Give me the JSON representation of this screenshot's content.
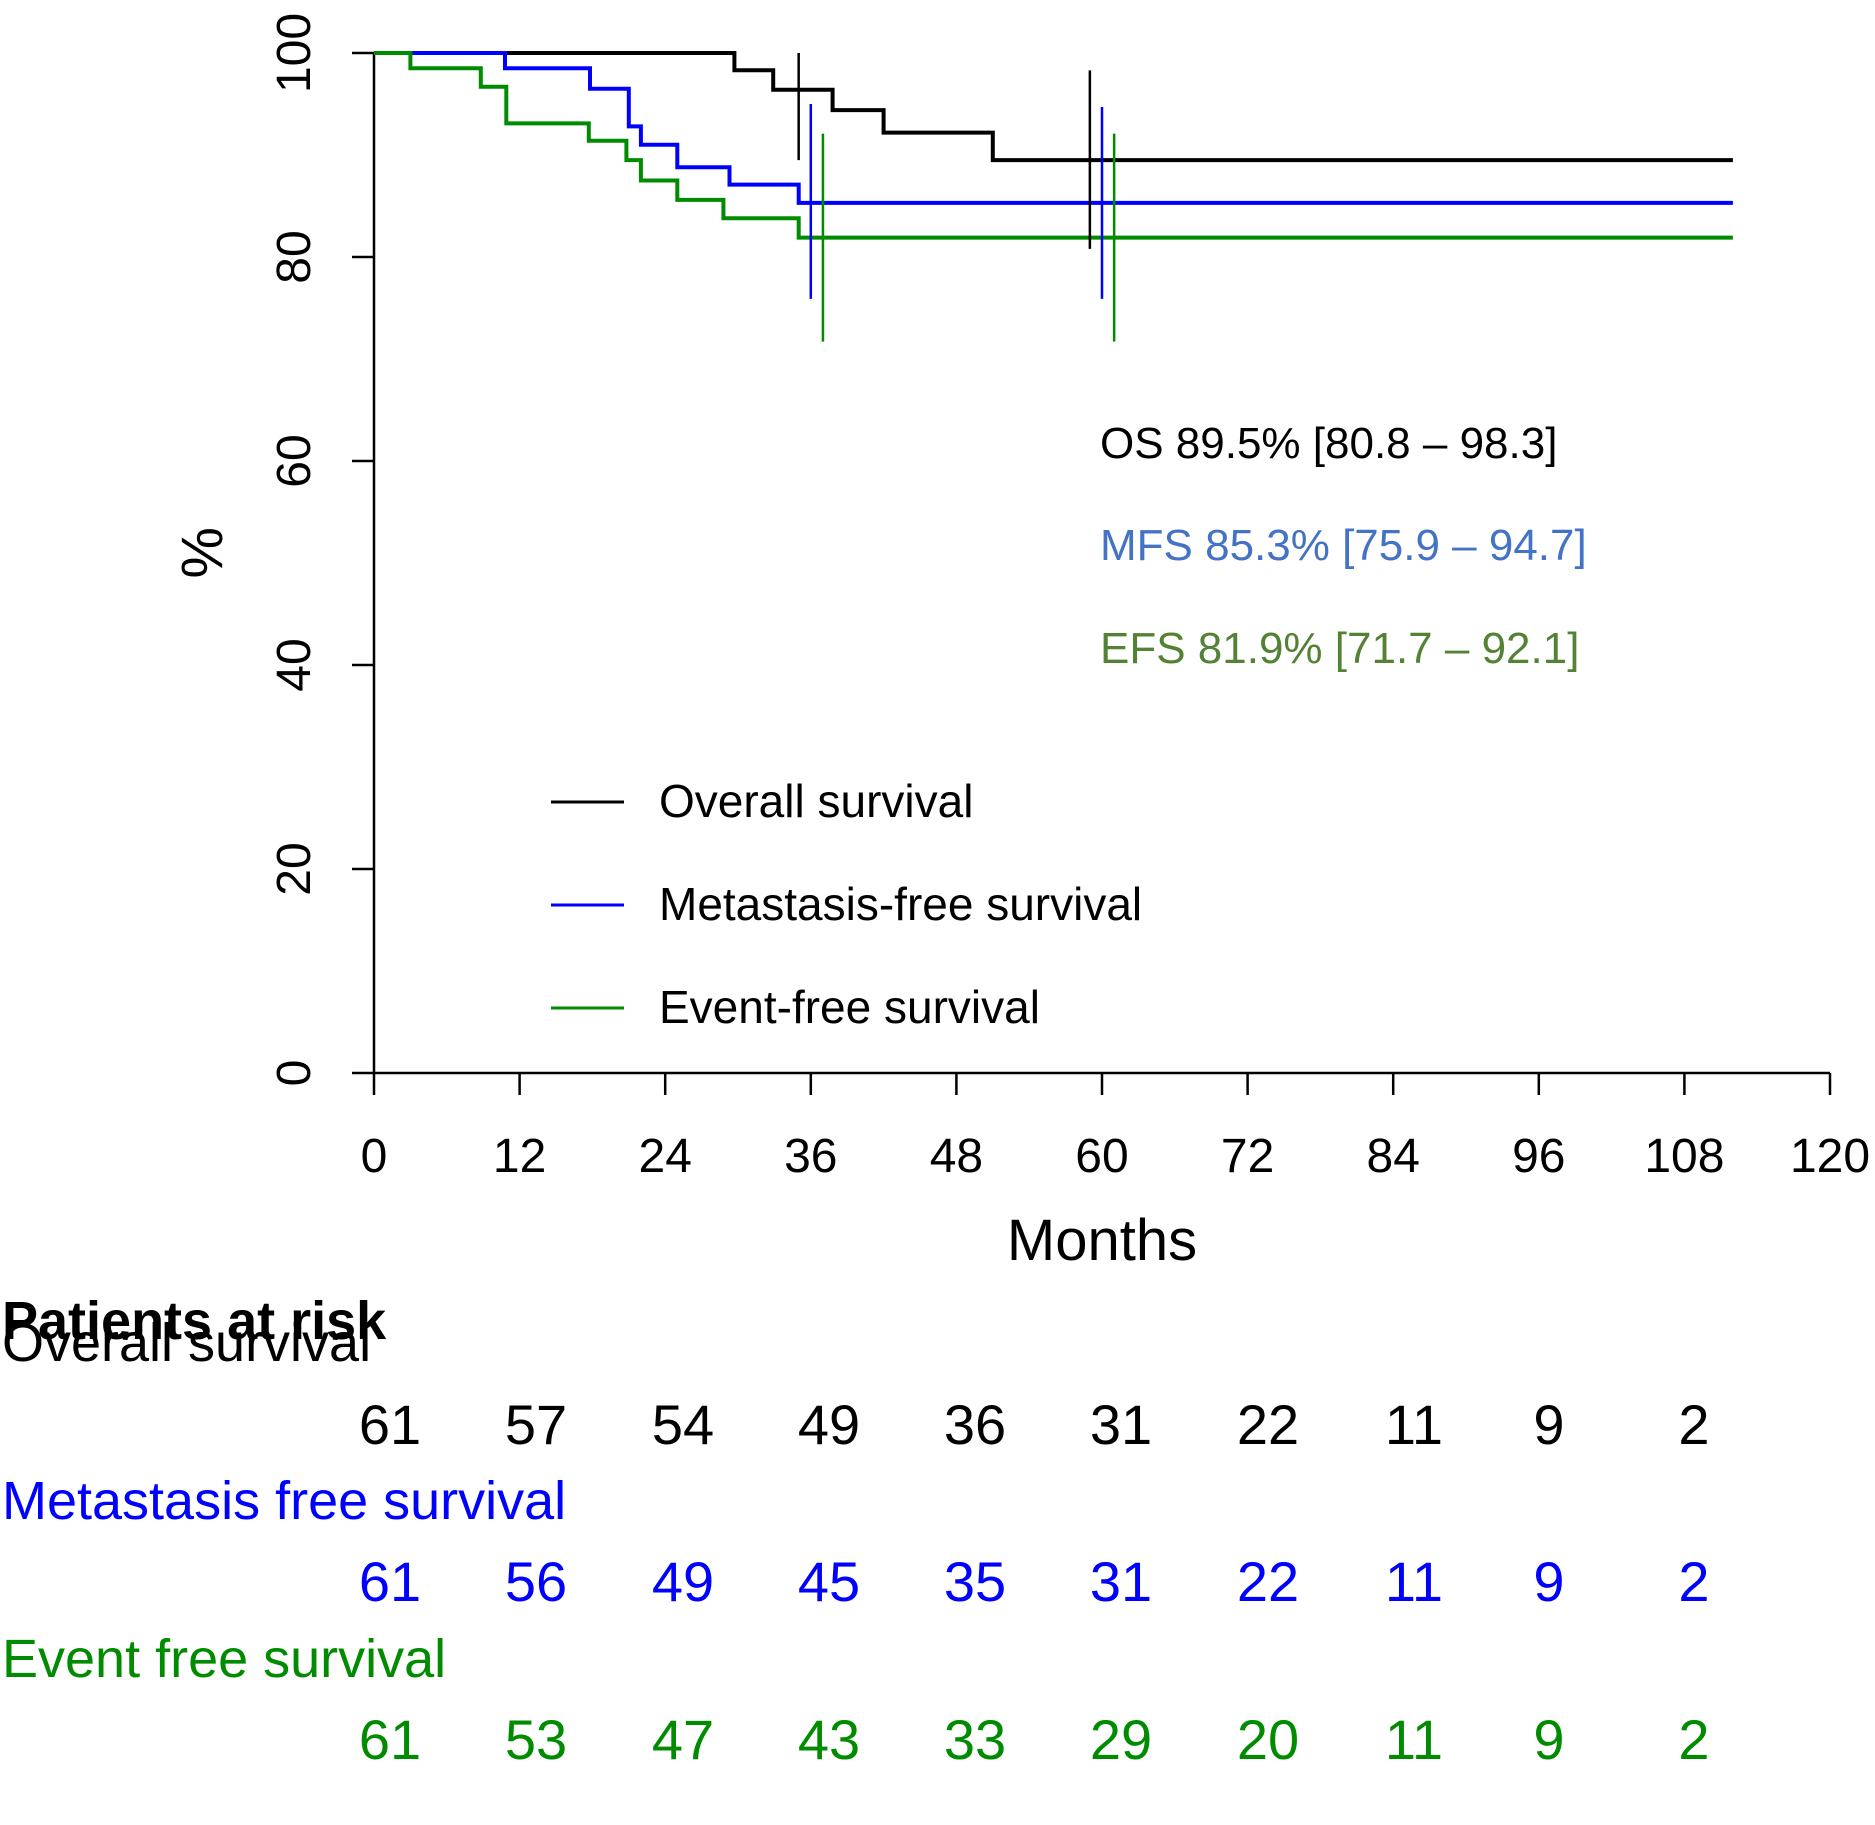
{
  "chart_data": {
    "type": "line",
    "subtype": "kaplan-meier",
    "title": "",
    "xlabel": "Months",
    "ylabel": "%",
    "xlim": [
      0,
      120
    ],
    "ylim": [
      0,
      100
    ],
    "xticks": [
      "0",
      "12",
      "24",
      "36",
      "48",
      "60",
      "72",
      "84",
      "96",
      "108",
      "120"
    ],
    "yticks": [
      "0",
      "20",
      "40",
      "60",
      "80",
      "100"
    ],
    "grid": false,
    "legend_position": "bottom-center",
    "series": [
      {
        "name": "Overall survival",
        "color": "#000000",
        "steps": [
          [
            0,
            100
          ],
          [
            29.7,
            100
          ],
          [
            29.7,
            98.3
          ],
          [
            32.9,
            98.3
          ],
          [
            32.9,
            96.4
          ],
          [
            37.8,
            96.4
          ],
          [
            37.8,
            94.4
          ],
          [
            42,
            94.4
          ],
          [
            42,
            92.2
          ],
          [
            51,
            92.2
          ],
          [
            51,
            89.5
          ],
          [
            112,
            89.5
          ]
        ],
        "ci_bars": [
          {
            "x": 35,
            "low": 89.5,
            "high": 100
          },
          {
            "x": 59,
            "low": 80.8,
            "high": 98.3
          }
        ]
      },
      {
        "name": "Metastasis-free survival",
        "color": "#0000ff",
        "steps": [
          [
            0,
            100
          ],
          [
            10.8,
            100
          ],
          [
            10.8,
            98.5
          ],
          [
            17.8,
            98.5
          ],
          [
            17.8,
            96.5
          ],
          [
            21,
            96.5
          ],
          [
            21,
            92.8
          ],
          [
            22,
            92.8
          ],
          [
            22,
            91
          ],
          [
            25,
            91
          ],
          [
            25,
            88.8
          ],
          [
            29.3,
            88.8
          ],
          [
            29.3,
            87.1
          ],
          [
            35,
            87.1
          ],
          [
            35,
            85.3
          ],
          [
            112,
            85.3
          ]
        ],
        "ci_bars": [
          {
            "x": 36,
            "low": 75.9,
            "high": 95
          },
          {
            "x": 60,
            "low": 75.9,
            "high": 94.7
          }
        ]
      },
      {
        "name": "Event-free survival",
        "color": "#008b00",
        "steps": [
          [
            0,
            100
          ],
          [
            3,
            100
          ],
          [
            3,
            98.5
          ],
          [
            8.8,
            98.5
          ],
          [
            8.8,
            96.7
          ],
          [
            10.9,
            96.7
          ],
          [
            10.9,
            93.1
          ],
          [
            17.7,
            93.1
          ],
          [
            17.7,
            91.4
          ],
          [
            20.8,
            91.4
          ],
          [
            20.8,
            89.5
          ],
          [
            22,
            89.5
          ],
          [
            22,
            87.5
          ],
          [
            25,
            87.5
          ],
          [
            25,
            85.6
          ],
          [
            28.8,
            85.6
          ],
          [
            28.8,
            83.8
          ],
          [
            35,
            83.8
          ],
          [
            35,
            81.9
          ],
          [
            112,
            81.9
          ]
        ],
        "ci_bars": [
          {
            "x": 37,
            "low": 71.7,
            "high": 92.1
          },
          {
            "x": 61,
            "low": 71.7,
            "high": 92.1
          }
        ]
      }
    ],
    "annotations": [
      {
        "text": "OS 89.5% [80.8 – 98.3]",
        "color": "#000000"
      },
      {
        "text": "MFS 85.3% [75.9 – 94.7]",
        "color": "#4472c4"
      },
      {
        "text": "EFS 81.9% [71.7 – 92.1]",
        "color": "#548235"
      }
    ],
    "risk_table": {
      "title": "Patients at risk",
      "rows": [
        {
          "label": "Overall survival",
          "color": "#000000",
          "values": [
            "61",
            "57",
            "54",
            "49",
            "36",
            "31",
            "22",
            "11",
            "9",
            "2"
          ]
        },
        {
          "label": "Metastasis free survival",
          "color": "#0000ff",
          "values": [
            "61",
            "56",
            "49",
            "45",
            "35",
            "31",
            "22",
            "11",
            "9",
            "2"
          ]
        },
        {
          "label": "Event free survival",
          "color": "#008b00",
          "values": [
            "61",
            "53",
            "47",
            "43",
            "33",
            "29",
            "20",
            "11",
            "9",
            "2"
          ]
        }
      ]
    }
  }
}
